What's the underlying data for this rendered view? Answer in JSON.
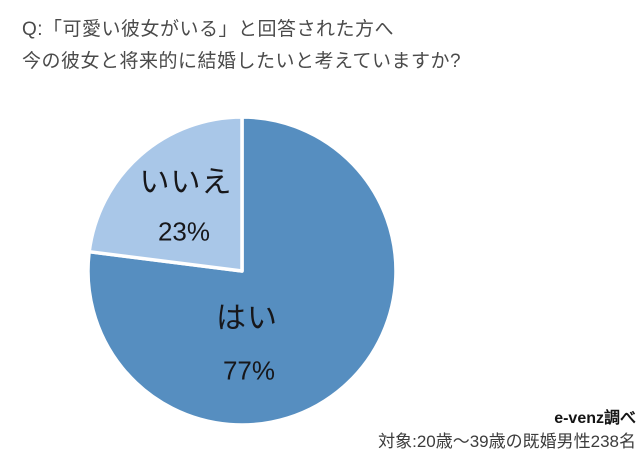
{
  "header": {
    "line1": "Q:「可愛い彼女がいる」と回答された方へ",
    "line2": "今の彼女と将来的に結婚したいと考えていますか?"
  },
  "chart_data": {
    "type": "pie",
    "title": "Q:「可愛い彼女がいる」と回答された方へ 今の彼女と将来的に結婚したいと考えていますか?",
    "slices": [
      {
        "id": "yes",
        "label": "はい",
        "value": 77,
        "pct_label": "77%",
        "color": "#568EC0"
      },
      {
        "id": "no",
        "label": "いいえ",
        "value": 23,
        "pct_label": "23%",
        "color": "#A9C7E8"
      }
    ],
    "start_angle_deg": 0,
    "direction": "clockwise",
    "slice_border_color": "#FFFFFF",
    "legend": "none",
    "labels_on_slices": true
  },
  "footer": {
    "source": "e-venz調べ",
    "target": "対象:20歳〜39歳の既婚男性238名"
  }
}
